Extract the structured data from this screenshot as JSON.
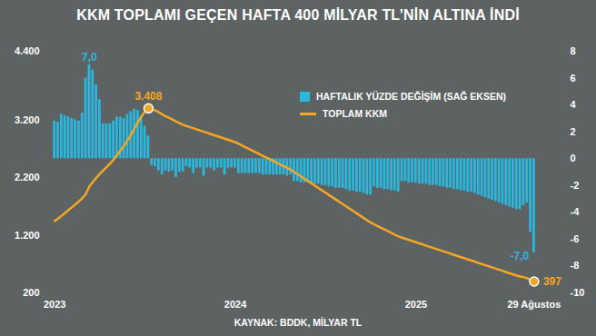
{
  "chart_data": {
    "type": "combo",
    "title": "KKM TOPLAMI GEÇEN HAFTA 400 MİLYAR TL’NİN ALTINA İNDİ",
    "caption": "KAYNAK: BDDK, MİLYAR TL",
    "categories": [
      "2023",
      null,
      null,
      null,
      null,
      null,
      null,
      null,
      null,
      null,
      null,
      null,
      null,
      null,
      null,
      null,
      null,
      null,
      null,
      null,
      null,
      null,
      null,
      null,
      null,
      null,
      null,
      null,
      null,
      null,
      null,
      null,
      null,
      null,
      null,
      null,
      null,
      null,
      null,
      null,
      null,
      null,
      null,
      null,
      null,
      null,
      null,
      null,
      null,
      null,
      null,
      null,
      "2024",
      null,
      null,
      null,
      null,
      null,
      null,
      null,
      null,
      null,
      null,
      null,
      null,
      null,
      null,
      null,
      null,
      null,
      null,
      null,
      null,
      null,
      null,
      null,
      null,
      null,
      null,
      null,
      null,
      null,
      null,
      null,
      null,
      null,
      null,
      null,
      null,
      null,
      null,
      null,
      null,
      null,
      null,
      null,
      null,
      null,
      null,
      null,
      null,
      null,
      null,
      null,
      "2025",
      null,
      null,
      null,
      null,
      null,
      null,
      null,
      null,
      null,
      null,
      null,
      null,
      null,
      null,
      null,
      null,
      null,
      null,
      null,
      null,
      null,
      null,
      null,
      null,
      null,
      null,
      null,
      null,
      null,
      null,
      null,
      null,
      null,
      "29 Ağustos"
    ],
    "ylim": [
      200,
      4400
    ],
    "yticks": [
      200,
      {
        "value": 1200,
        "label": "1.200"
      },
      {
        "value": 2200,
        "label": "2.200"
      },
      {
        "value": 3200,
        "label": "3.200"
      },
      {
        "value": 4400,
        "label": "4.400"
      }
    ],
    "y2lim": [
      -10,
      8
    ],
    "y2ticks": [
      -10,
      -8,
      -6,
      -4,
      -2,
      0,
      2,
      4,
      6,
      8
    ],
    "grid": false,
    "legend": "top",
    "series": [
      {
        "name": "HAFTALIK YÜZDE DEĞİŞİM (SAĞ EKSEN)",
        "type": "bar",
        "axis": "y2",
        "color": "#2bb8e0",
        "values": [
          2.8,
          2.7,
          3.3,
          3.2,
          3.1,
          3.0,
          2.9,
          2.8,
          3.4,
          6.0,
          7.0,
          6.6,
          5.5,
          4.4,
          2.6,
          2.6,
          2.6,
          2.8,
          3.1,
          3.1,
          3.0,
          3.3,
          3.5,
          3.7,
          3.6,
          3.2,
          2.4,
          1.7,
          -0.5,
          -0.6,
          -0.9,
          -1.2,
          -0.9,
          -1.0,
          -0.9,
          -1.4,
          -1.0,
          -1.0,
          -0.6,
          -0.7,
          -1.1,
          -0.7,
          -0.7,
          -1.3,
          -0.7,
          -0.7,
          -0.9,
          -0.7,
          -0.7,
          -1.2,
          -0.7,
          -0.7,
          -0.7,
          -1.1,
          -1.1,
          -1.1,
          -1.1,
          -1.1,
          -1.1,
          -1.1,
          -1.2,
          -1.2,
          -1.2,
          -1.2,
          -1.2,
          -1.2,
          -1.2,
          -1.3,
          -1.2,
          -1.7,
          -1.7,
          -1.8,
          -1.8,
          -1.8,
          -1.9,
          -1.9,
          -1.9,
          -2.0,
          -2.0,
          -2.1,
          -2.1,
          -2.2,
          -2.2,
          -2.2,
          -2.3,
          -2.4,
          -2.4,
          -2.5,
          -2.5,
          -2.6,
          -2.7,
          -2.7,
          -2.1,
          -2.2,
          -2.2,
          -2.3,
          -2.3,
          -2.4,
          -2.4,
          -2.5,
          -1.7,
          -1.7,
          -1.8,
          -1.8,
          -1.8,
          -1.9,
          -1.9,
          -1.9,
          -2.0,
          -2.0,
          -2.0,
          -2.1,
          -2.1,
          -2.2,
          -2.2,
          -2.3,
          -2.3,
          -2.4,
          -2.4,
          -2.5,
          -2.5,
          -2.6,
          -2.7,
          -2.8,
          -2.9,
          -3.0,
          -3.1,
          -3.2,
          -3.3,
          -3.4,
          -3.5,
          -3.6,
          -3.7,
          -3.8,
          -3.8,
          -3.5,
          -3.3,
          -5.5,
          -7.0
        ],
        "value_labels": [
          null,
          null,
          null,
          null,
          null,
          null,
          null,
          null,
          null,
          null,
          "7,0",
          null,
          null,
          null,
          null,
          null,
          null,
          null,
          null,
          null,
          null,
          null,
          null,
          null,
          null,
          null,
          null,
          null,
          null,
          null,
          null,
          null,
          null,
          null,
          null,
          null,
          null,
          null,
          null,
          null,
          null,
          null,
          null,
          null,
          null,
          null,
          null,
          null,
          null,
          null,
          null,
          null,
          null,
          null,
          null,
          null,
          null,
          null,
          null,
          null,
          null,
          null,
          null,
          null,
          null,
          null,
          null,
          null,
          null,
          null,
          null,
          null,
          null,
          null,
          null,
          null,
          null,
          null,
          null,
          null,
          null,
          null,
          null,
          null,
          null,
          null,
          null,
          null,
          null,
          null,
          null,
          null,
          null,
          null,
          null,
          null,
          null,
          null,
          null,
          null,
          null,
          null,
          null,
          null,
          null,
          null,
          null,
          null,
          null,
          null,
          null,
          null,
          null,
          null,
          null,
          null,
          null,
          null,
          null,
          null,
          null,
          null,
          null,
          null,
          null,
          null,
          null,
          null,
          null,
          null,
          null,
          null,
          null,
          null,
          null,
          null,
          null,
          null,
          "-7,0"
        ]
      },
      {
        "name": "TOPLAM KKM",
        "type": "line",
        "color": "#f5a623",
        "values": [
          1450,
          1490,
          1540,
          1590,
          1640,
          1690,
          1740,
          1790,
          1850,
          1920,
          2050,
          2130,
          2200,
          2270,
          2330,
          2390,
          2450,
          2520,
          2600,
          2680,
          2760,
          2850,
          2950,
          3060,
          3170,
          3270,
          3350,
          3408,
          3390,
          3370,
          3340,
          3300,
          3270,
          3240,
          3210,
          3180,
          3150,
          3120,
          3100,
          3080,
          3060,
          3040,
          3020,
          3000,
          2980,
          2960,
          2940,
          2920,
          2900,
          2880,
          2860,
          2840,
          2820,
          2790,
          2760,
          2730,
          2700,
          2670,
          2640,
          2610,
          2580,
          2550,
          2520,
          2490,
          2460,
          2430,
          2400,
          2370,
          2340,
          2300,
          2260,
          2220,
          2180,
          2140,
          2100,
          2060,
          2020,
          1980,
          1940,
          1900,
          1860,
          1820,
          1780,
          1740,
          1700,
          1660,
          1620,
          1580,
          1540,
          1500,
          1460,
          1420,
          1390,
          1360,
          1330,
          1300,
          1270,
          1240,
          1210,
          1180,
          1160,
          1140,
          1120,
          1100,
          1080,
          1060,
          1040,
          1020,
          1000,
          980,
          960,
          940,
          920,
          900,
          880,
          860,
          840,
          820,
          800,
          780,
          760,
          740,
          720,
          700,
          680,
          660,
          640,
          620,
          600,
          580,
          560,
          540,
          520,
          500,
          485,
          470,
          455,
          430,
          397
        ],
        "value_labels": [
          null,
          null,
          null,
          null,
          null,
          null,
          null,
          null,
          null,
          null,
          null,
          null,
          null,
          null,
          null,
          null,
          null,
          null,
          null,
          null,
          null,
          null,
          null,
          null,
          null,
          null,
          null,
          "3.408",
          null,
          null,
          null,
          null,
          null,
          null,
          null,
          null,
          null,
          null,
          null,
          null,
          null,
          null,
          null,
          null,
          null,
          null,
          null,
          null,
          null,
          null,
          null,
          null,
          null,
          null,
          null,
          null,
          null,
          null,
          null,
          null,
          null,
          null,
          null,
          null,
          null,
          null,
          null,
          null,
          null,
          null,
          null,
          null,
          null,
          null,
          null,
          null,
          null,
          null,
          null,
          null,
          null,
          null,
          null,
          null,
          null,
          null,
          null,
          null,
          null,
          null,
          null,
          null,
          null,
          null,
          null,
          null,
          null,
          null,
          null,
          null,
          null,
          null,
          null,
          null,
          null,
          null,
          null,
          null,
          null,
          null,
          null,
          null,
          null,
          null,
          null,
          null,
          null,
          null,
          null,
          null,
          null,
          null,
          null,
          null,
          null,
          null,
          null,
          null,
          null,
          null,
          null,
          null,
          null,
          null,
          null,
          null,
          null,
          null,
          "397"
        ]
      }
    ]
  }
}
